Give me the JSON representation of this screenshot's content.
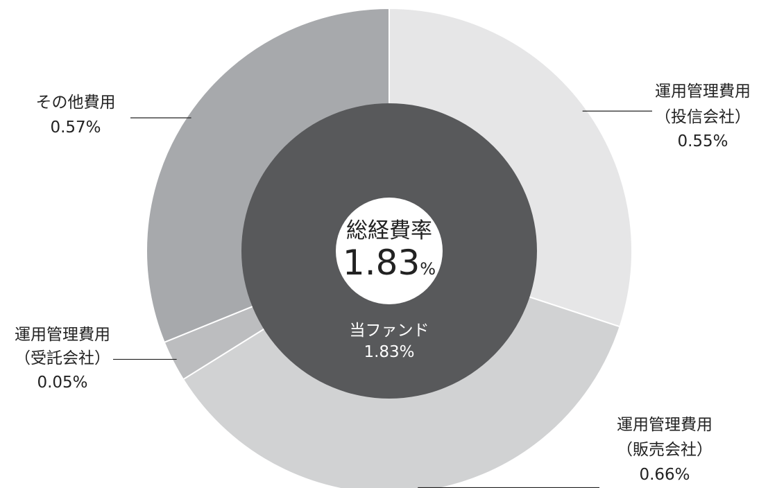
{
  "chart_data": {
    "type": "pie",
    "variant": "donut",
    "center": {
      "title": "総経費率",
      "value": "1.83",
      "unit": "%"
    },
    "inner": {
      "label": "当ファンド",
      "value_text": "1.83%",
      "value": 1.83,
      "color": "#58595b"
    },
    "slices": [
      {
        "label_lines": [
          "運用管理費用",
          "（投信会社）"
        ],
        "value_text": "0.55%",
        "value": 0.55,
        "color": "#e6e6e7",
        "side": "right"
      },
      {
        "label_lines": [
          "運用管理費用",
          "（販売会社）"
        ],
        "value_text": "0.66%",
        "value": 0.66,
        "color": "#d1d2d3",
        "side": "right"
      },
      {
        "label_lines": [
          "運用管理費用",
          "（受託会社）"
        ],
        "value_text": "0.05%",
        "value": 0.05,
        "color": "#bcbdbf",
        "side": "left"
      },
      {
        "label_lines": [
          "その他費用"
        ],
        "value_text": "0.57%",
        "value": 0.57,
        "color": "#a7a9ac",
        "side": "left"
      }
    ]
  }
}
